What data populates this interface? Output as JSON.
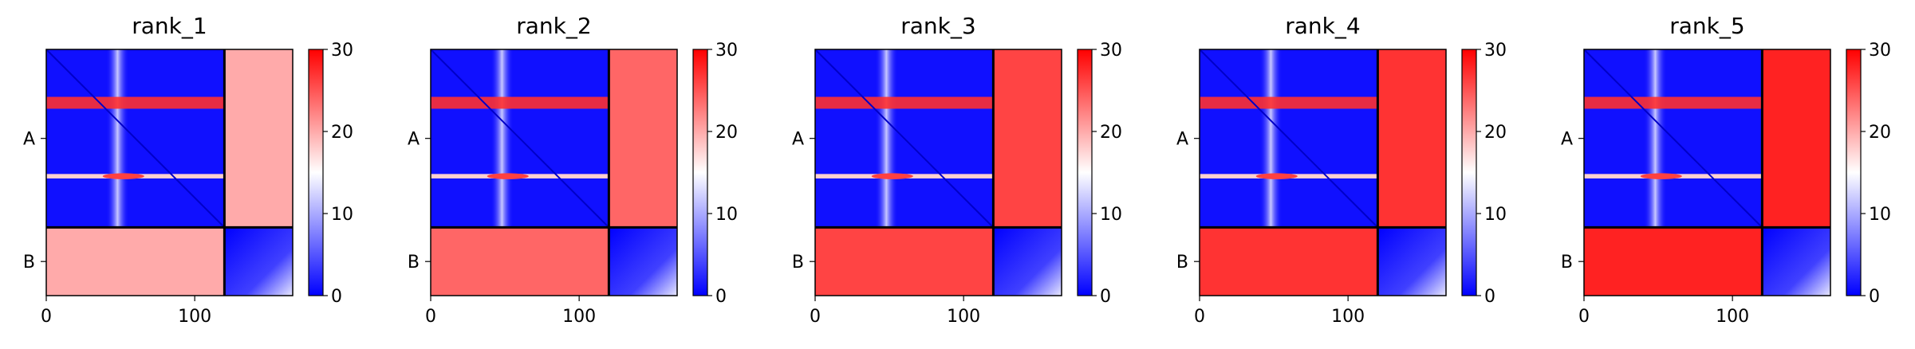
{
  "chart_data": [
    {
      "type": "heatmap",
      "title": "rank_1",
      "chains": [
        {
          "label": "A",
          "length": 120
        },
        {
          "label": "B",
          "length": 46
        }
      ],
      "x_ticks": [
        0,
        100
      ],
      "xlim": [
        0,
        166
      ],
      "colorbar": {
        "ticks": [
          0,
          10,
          20,
          30
        ],
        "range": [
          0,
          30
        ],
        "colormap": "bwr"
      },
      "interchain_error_mean": 20
    },
    {
      "type": "heatmap",
      "title": "rank_2",
      "chains": [
        {
          "label": "A",
          "length": 120
        },
        {
          "label": "B",
          "length": 46
        }
      ],
      "x_ticks": [
        0,
        100
      ],
      "xlim": [
        0,
        166
      ],
      "colorbar": {
        "ticks": [
          0,
          10,
          20,
          30
        ],
        "range": [
          0,
          30
        ],
        "colormap": "bwr"
      },
      "interchain_error_mean": 24
    },
    {
      "type": "heatmap",
      "title": "rank_3",
      "chains": [
        {
          "label": "A",
          "length": 120
        },
        {
          "label": "B",
          "length": 46
        }
      ],
      "x_ticks": [
        0,
        100
      ],
      "xlim": [
        0,
        166
      ],
      "colorbar": {
        "ticks": [
          0,
          10,
          20,
          30
        ],
        "range": [
          0,
          30
        ],
        "colormap": "bwr"
      },
      "interchain_error_mean": 26
    },
    {
      "type": "heatmap",
      "title": "rank_4",
      "chains": [
        {
          "label": "A",
          "length": 120
        },
        {
          "label": "B",
          "length": 46
        }
      ],
      "x_ticks": [
        0,
        100
      ],
      "xlim": [
        0,
        166
      ],
      "colorbar": {
        "ticks": [
          0,
          10,
          20,
          30
        ],
        "range": [
          0,
          30
        ],
        "colormap": "bwr"
      },
      "interchain_error_mean": 27
    },
    {
      "type": "heatmap",
      "title": "rank_5",
      "chains": [
        {
          "label": "A",
          "length": 120
        },
        {
          "label": "B",
          "length": 46
        }
      ],
      "x_ticks": [
        0,
        100
      ],
      "xlim": [
        0,
        166
      ],
      "colorbar": {
        "ticks": [
          0,
          10,
          20,
          30
        ],
        "range": [
          0,
          30
        ],
        "colormap": "bwr"
      },
      "interchain_error_mean": 28
    }
  ],
  "colors": {
    "low": "#0000ff",
    "mid": "#ffffff",
    "high": "#ff0000",
    "frame": "#000000"
  }
}
